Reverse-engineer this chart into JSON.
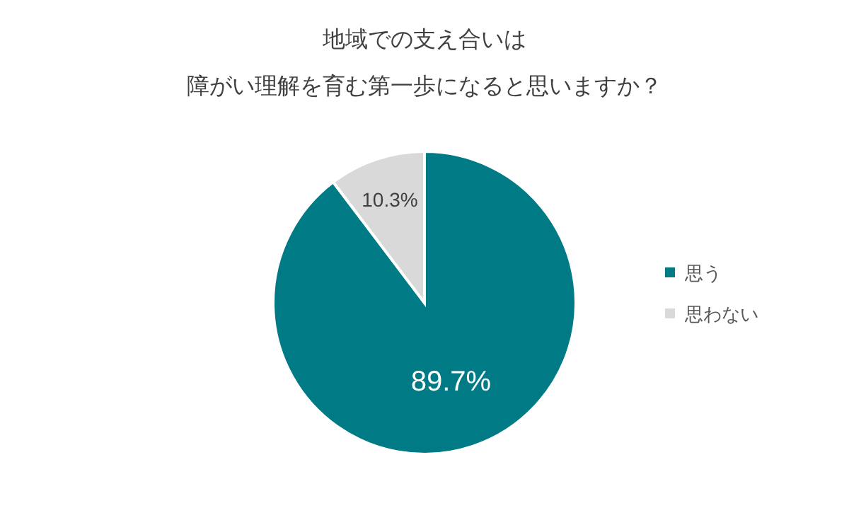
{
  "chart_data": {
    "type": "pie",
    "title": "地域での支え合いは",
    "subtitle": "障がい理解を育む第一歩になると思いますか？",
    "categories": [
      "思う",
      "思わない"
    ],
    "values": [
      89.7,
      10.3
    ],
    "value_labels": [
      "89.7%",
      "10.3%"
    ],
    "colors": [
      "#007b86",
      "#d9d9d9"
    ],
    "legend": "right"
  }
}
